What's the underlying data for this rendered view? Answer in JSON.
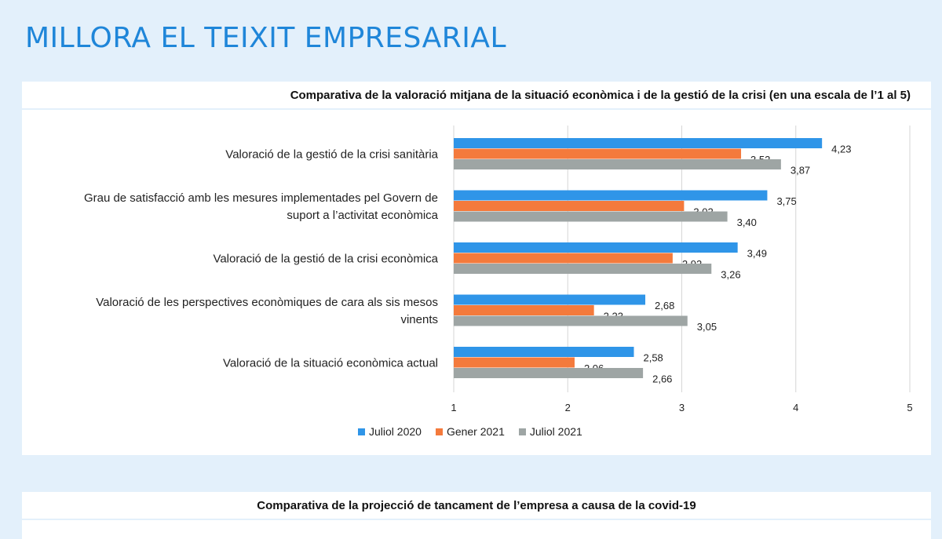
{
  "page": {
    "title": "MILLORA EL TEIXIT EMPRESARIAL"
  },
  "chart_data": {
    "type": "bar",
    "orientation": "horizontal",
    "title": "Comparativa de la valoració mitjana de la situació econòmica i de la gestió de la crisi (en una escala de l’1 al 5)",
    "categories": [
      [
        "Valoració de la gestió de la crisi sanitària"
      ],
      [
        "Grau de satisfacció amb les mesures implementades pel Govern de",
        "suport a l’activitat econòmica"
      ],
      [
        "Valoració de la gestió de la crisi econòmica"
      ],
      [
        "Valoració de les perspectives econòmiques de cara als sis mesos",
        "vinents"
      ],
      [
        "Valoració de la situació econòmica actual"
      ]
    ],
    "series": [
      {
        "name": "Juliol 2020",
        "color": "#2f95e8",
        "values": [
          4.23,
          3.75,
          3.49,
          2.68,
          2.58
        ],
        "labels": [
          "4,23",
          "3,75",
          "3,49",
          "2,68",
          "2,58"
        ]
      },
      {
        "name": "Gener 2021",
        "color": "#f47a3c",
        "values": [
          3.52,
          3.02,
          2.92,
          2.23,
          2.06
        ],
        "labels": [
          "3,52",
          "3,02",
          "2,92",
          "2,23",
          "2,06"
        ]
      },
      {
        "name": "Juliol 2021",
        "color": "#9ea5a4",
        "values": [
          3.87,
          3.4,
          3.26,
          3.05,
          2.66
        ],
        "labels": [
          "3,87",
          "3,40",
          "3,26",
          "3,05",
          "2,66"
        ]
      }
    ],
    "xlim": [
      1,
      5
    ],
    "xticks": [
      "1",
      "2",
      "3",
      "4",
      "5"
    ],
    "grid": true,
    "legend_position": "bottom"
  },
  "second_chart": {
    "title": "Comparativa de la projecció de tancament de l’empresa a causa de la covid-19"
  }
}
